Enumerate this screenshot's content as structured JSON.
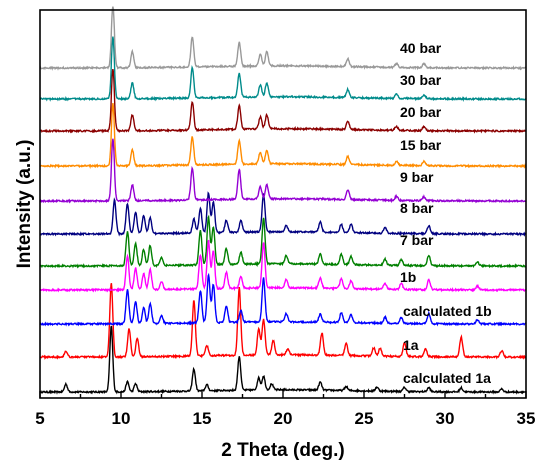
{
  "chart_data": {
    "type": "line",
    "xlabel": "2 Theta (deg.)",
    "ylabel": "Intensity (a.u.)",
    "xlim": [
      5,
      35
    ],
    "xticks": [
      5,
      10,
      15,
      20,
      25,
      30,
      35
    ],
    "yticks_shown": false,
    "series": [
      {
        "name": "calculated 1a",
        "color": "#000000",
        "peaks": [
          [
            6.6,
            8
          ],
          [
            9.4,
            66
          ],
          [
            10.4,
            10
          ],
          [
            10.9,
            8
          ],
          [
            14.5,
            22
          ],
          [
            15.3,
            6
          ],
          [
            17.3,
            34
          ],
          [
            18.5,
            12
          ],
          [
            18.8,
            14
          ],
          [
            19.3,
            6
          ],
          [
            22.3,
            8
          ],
          [
            23.9,
            4
          ],
          [
            25.8,
            4
          ],
          [
            27.5,
            4
          ],
          [
            29.0,
            4
          ],
          [
            31.0,
            4
          ],
          [
            33.5,
            3
          ]
        ]
      },
      {
        "name": "1a",
        "color": "#ff0000",
        "peaks": [
          [
            6.6,
            6
          ],
          [
            9.4,
            74
          ],
          [
            10.5,
            28
          ],
          [
            11.0,
            18
          ],
          [
            14.5,
            56
          ],
          [
            15.3,
            10
          ],
          [
            17.3,
            68
          ],
          [
            18.5,
            26
          ],
          [
            18.8,
            36
          ],
          [
            19.4,
            14
          ],
          [
            20.3,
            6
          ],
          [
            22.4,
            22
          ],
          [
            23.9,
            12
          ],
          [
            25.6,
            8
          ],
          [
            26.0,
            8
          ],
          [
            27.5,
            14
          ],
          [
            28.8,
            8
          ],
          [
            31.0,
            20
          ],
          [
            33.5,
            6
          ]
        ]
      },
      {
        "name": "calculated 1b",
        "color": "#0000ff",
        "peaks": [
          [
            10.4,
            34
          ],
          [
            10.9,
            22
          ],
          [
            11.4,
            16
          ],
          [
            11.8,
            20
          ],
          [
            12.5,
            8
          ],
          [
            14.9,
            32
          ],
          [
            15.4,
            48
          ],
          [
            15.7,
            38
          ],
          [
            16.5,
            16
          ],
          [
            17.4,
            12
          ],
          [
            18.8,
            44
          ],
          [
            20.2,
            8
          ],
          [
            22.3,
            8
          ],
          [
            23.6,
            10
          ],
          [
            24.2,
            8
          ],
          [
            26.3,
            6
          ],
          [
            27.3,
            6
          ],
          [
            29.0,
            10
          ],
          [
            32.0,
            4
          ]
        ]
      },
      {
        "name": "1b",
        "color": "#ff00ff",
        "peaks": [
          [
            10.4,
            34
          ],
          [
            10.9,
            22
          ],
          [
            11.4,
            16
          ],
          [
            11.8,
            20
          ],
          [
            12.5,
            8
          ],
          [
            14.9,
            34
          ],
          [
            15.4,
            48
          ],
          [
            15.7,
            38
          ],
          [
            16.5,
            16
          ],
          [
            17.4,
            12
          ],
          [
            18.8,
            46
          ],
          [
            20.2,
            8
          ],
          [
            22.3,
            10
          ],
          [
            23.6,
            10
          ],
          [
            24.2,
            8
          ],
          [
            26.3,
            6
          ],
          [
            27.3,
            6
          ],
          [
            29.0,
            10
          ],
          [
            32.0,
            4
          ]
        ]
      },
      {
        "name": "7 bar",
        "color": "#008000",
        "peaks": [
          [
            10.4,
            34
          ],
          [
            10.9,
            22
          ],
          [
            11.4,
            16
          ],
          [
            11.8,
            20
          ],
          [
            12.5,
            8
          ],
          [
            14.9,
            34
          ],
          [
            15.4,
            48
          ],
          [
            15.7,
            38
          ],
          [
            16.5,
            16
          ],
          [
            17.4,
            12
          ],
          [
            18.8,
            46
          ],
          [
            20.2,
            8
          ],
          [
            22.3,
            10
          ],
          [
            23.6,
            10
          ],
          [
            24.2,
            8
          ],
          [
            26.3,
            6
          ],
          [
            27.3,
            6
          ],
          [
            29.0,
            10
          ],
          [
            32.0,
            4
          ]
        ]
      },
      {
        "name": "8 bar",
        "color": "#000080",
        "peaks": [
          [
            9.6,
            34
          ],
          [
            10.4,
            30
          ],
          [
            10.9,
            22
          ],
          [
            11.4,
            18
          ],
          [
            11.8,
            16
          ],
          [
            14.5,
            14
          ],
          [
            14.9,
            24
          ],
          [
            15.4,
            40
          ],
          [
            15.7,
            30
          ],
          [
            16.5,
            12
          ],
          [
            17.4,
            12
          ],
          [
            18.8,
            38
          ],
          [
            20.2,
            6
          ],
          [
            22.3,
            10
          ],
          [
            23.6,
            8
          ],
          [
            24.2,
            8
          ],
          [
            26.3,
            6
          ],
          [
            29.0,
            8
          ]
        ]
      },
      {
        "name": "9 bar",
        "color": "#9400d3",
        "peaks": [
          [
            9.5,
            62
          ],
          [
            10.7,
            16
          ],
          [
            14.4,
            32
          ],
          [
            17.3,
            30
          ],
          [
            18.6,
            12
          ],
          [
            19.0,
            14
          ],
          [
            24.0,
            10
          ],
          [
            27.0,
            4
          ],
          [
            28.7,
            4
          ]
        ]
      },
      {
        "name": "15 bar",
        "color": "#ff8c00",
        "peaks": [
          [
            9.5,
            62
          ],
          [
            10.7,
            16
          ],
          [
            14.4,
            28
          ],
          [
            17.3,
            24
          ],
          [
            18.6,
            12
          ],
          [
            19.0,
            14
          ],
          [
            24.0,
            8
          ],
          [
            27.0,
            4
          ],
          [
            28.7,
            4
          ]
        ]
      },
      {
        "name": "20 bar",
        "color": "#8b0000",
        "peaks": [
          [
            9.5,
            62
          ],
          [
            10.7,
            16
          ],
          [
            14.4,
            28
          ],
          [
            17.3,
            24
          ],
          [
            18.6,
            12
          ],
          [
            19.0,
            14
          ],
          [
            24.0,
            8
          ],
          [
            27.0,
            4
          ],
          [
            28.7,
            4
          ]
        ]
      },
      {
        "name": "30 bar",
        "color": "#008b8b",
        "peaks": [
          [
            9.5,
            62
          ],
          [
            10.7,
            16
          ],
          [
            14.4,
            30
          ],
          [
            17.3,
            24
          ],
          [
            18.6,
            12
          ],
          [
            19.0,
            14
          ],
          [
            24.0,
            8
          ],
          [
            27.0,
            4
          ],
          [
            28.7,
            4
          ]
        ]
      },
      {
        "name": "40 bar",
        "color": "#999999",
        "peaks": [
          [
            9.5,
            62
          ],
          [
            10.7,
            16
          ],
          [
            14.4,
            30
          ],
          [
            17.3,
            24
          ],
          [
            18.6,
            12
          ],
          [
            19.0,
            14
          ],
          [
            24.0,
            8
          ],
          [
            27.0,
            4
          ],
          [
            28.7,
            4
          ]
        ]
      }
    ]
  }
}
